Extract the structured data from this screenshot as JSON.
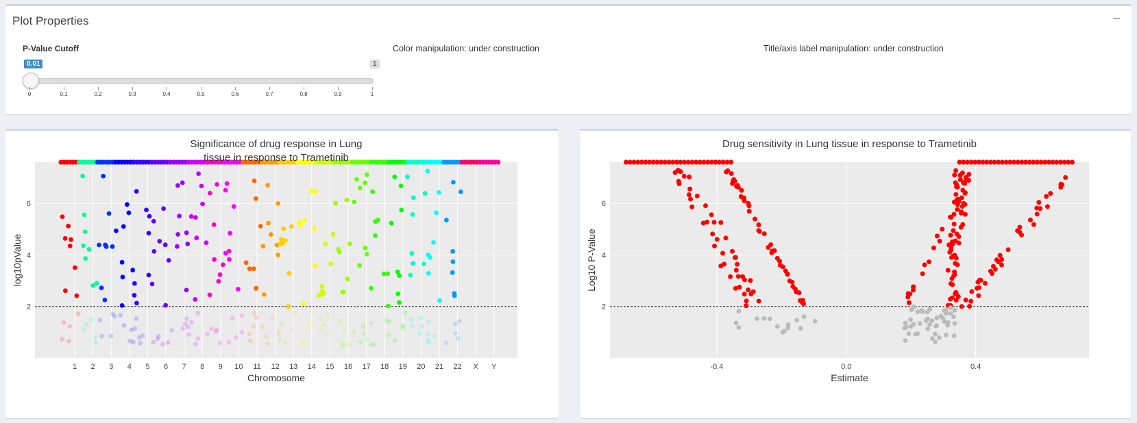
{
  "properties": {
    "header": "Plot Properties",
    "collapse_symbol": "−",
    "slider_title": "P-Value Cutoff",
    "slider_value": "0.01",
    "slider_max_label": "1",
    "slider_ticks": [
      "0",
      "0.1",
      "0.2",
      "0.3",
      "0.4",
      "0.5",
      "0.6",
      "0.7",
      "0.8",
      "0.9",
      "1"
    ],
    "color_text": "Color manipulation: under construction",
    "title_text": "Title/axis label manipulation: under construction"
  },
  "chart_data": [
    {
      "type": "scatter",
      "title": [
        "Significance of drug response in Lung",
        "tissue in response to Trametinib"
      ],
      "xlabel": "Chromosome",
      "ylabel": "log10pValue",
      "categories": [
        "1",
        "2",
        "3",
        "4",
        "5",
        "6",
        "7",
        "8",
        "9",
        "10",
        "11",
        "12",
        "13",
        "14",
        "15",
        "16",
        "17",
        "18",
        "19",
        "20",
        "21",
        "22",
        "X",
        "Y"
      ],
      "yticks": [
        2,
        4,
        6
      ],
      "ylim": [
        0,
        7.6
      ],
      "cutoff": 2,
      "chromosome_colors": [
        "#ff0000",
        "#00ff99",
        "#0033ff",
        "#0000ff",
        "#3300ff",
        "#6600ff",
        "#9900ff",
        "#cc00ff",
        "#ff00cc",
        "#ff00ff",
        "#ff6600",
        "#ff9900",
        "#ffcc00",
        "#ffff00",
        "#ccff00",
        "#99ff00",
        "#66ff00",
        "#33ff00",
        "#00ff00",
        "#00ffcc",
        "#00ffff",
        "#0099ff",
        "#ff0066",
        "#ff0099"
      ]
    },
    {
      "type": "scatter",
      "title": "Drug sensitivity in Lung tissue in response to Trametinib",
      "xlabel": "Estimate",
      "ylabel": "Log10 P-Value",
      "xticks": [
        -0.4,
        0.0,
        0.4
      ],
      "xtick_labels": [
        "-0.4",
        "0.0",
        "0.4"
      ],
      "yticks": [
        2,
        4,
        6
      ],
      "xlim": [
        -0.73,
        0.75
      ],
      "ylim": [
        0,
        7.6
      ],
      "cutoff": 2,
      "significant_color": "#ff0000",
      "nonsignificant_color": "#bbbbbb"
    }
  ]
}
